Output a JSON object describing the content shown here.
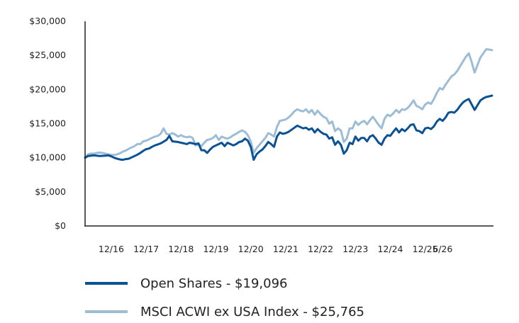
{
  "chart_data": {
    "type": "line",
    "y_ticks": [
      "$0",
      "$5,000",
      "$10,000",
      "$15,000",
      "$20,000",
      "$25,000",
      "$30,000"
    ],
    "x_ticks": [
      {
        "label": "12/16",
        "t": 9
      },
      {
        "label": "12/17",
        "t": 21
      },
      {
        "label": "12/18",
        "t": 33
      },
      {
        "label": "12/19",
        "t": 45
      },
      {
        "label": "12/20",
        "t": 57
      },
      {
        "label": "12/21",
        "t": 69
      },
      {
        "label": "12/22",
        "t": 81
      },
      {
        "label": "12/23",
        "t": 93
      },
      {
        "label": "12/24",
        "t": 105
      },
      {
        "label": "12/25",
        "t": 117
      },
      {
        "label": "6/26",
        "t": 123
      }
    ],
    "ylim": [
      0,
      30000
    ],
    "grid": false,
    "legend_position": "bottom",
    "series": [
      {
        "name": "Open Shares - $19,096",
        "color": "#0a5294",
        "values": [
          10000,
          10250,
          10300,
          10350,
          10300,
          10250,
          10280,
          10300,
          10350,
          10200,
          10000,
          9850,
          9750,
          9700,
          9800,
          9850,
          10050,
          10250,
          10450,
          10700,
          11000,
          11250,
          11350,
          11600,
          11800,
          11950,
          12100,
          12350,
          12600,
          13200,
          12400,
          12350,
          12300,
          12200,
          12100,
          12000,
          12200,
          12100,
          12000,
          12100,
          11100,
          11100,
          10700,
          11200,
          11600,
          11800,
          12000,
          12200,
          11700,
          12200,
          12000,
          11800,
          12000,
          12300,
          12400,
          12800,
          12500,
          11600,
          9700,
          10500,
          10900,
          11200,
          11700,
          12300,
          12000,
          11600,
          13100,
          13700,
          13500,
          13600,
          13800,
          14100,
          14400,
          14700,
          14500,
          14300,
          14400,
          14100,
          14300,
          13700,
          14200,
          13800,
          13500,
          13400,
          12800,
          13000,
          11900,
          12400,
          11900,
          10600,
          11100,
          12200,
          12000,
          13100,
          12500,
          12900,
          12900,
          12400,
          13100,
          13300,
          12800,
          12200,
          11900,
          12800,
          13300,
          13200,
          13800,
          14300,
          13700,
          14200,
          13900,
          14300,
          14800,
          14900,
          14000,
          13900,
          13600,
          14300,
          14400,
          14200,
          14600,
          15300,
          15700,
          15400,
          15900,
          16600,
          16700,
          16600,
          17000,
          17600,
          18100,
          18400,
          18600,
          17800,
          17000,
          17700,
          18400,
          18700,
          18900,
          19000,
          19096
        ]
      },
      {
        "name": "MSCI ACWI ex USA Index - $25,765",
        "color": "#9dbdd7",
        "values": [
          10000,
          10500,
          10600,
          10600,
          10700,
          10750,
          10700,
          10600,
          10500,
          10400,
          10400,
          10500,
          10650,
          10900,
          11050,
          11300,
          11500,
          11700,
          12000,
          12000,
          12400,
          12500,
          12700,
          12900,
          13100,
          13200,
          13500,
          14300,
          13500,
          13400,
          13600,
          13400,
          13100,
          13300,
          13100,
          13000,
          13100,
          12900,
          11800,
          12000,
          11700,
          12200,
          12600,
          12700,
          12900,
          13300,
          12600,
          13100,
          12900,
          12800,
          13000,
          13300,
          13500,
          13800,
          14000,
          13800,
          13300,
          12400,
          10700,
          11400,
          11900,
          12400,
          12900,
          13600,
          13400,
          13100,
          14500,
          15400,
          15500,
          15600,
          15900,
          16300,
          16800,
          17100,
          16900,
          16800,
          17100,
          16600,
          17000,
          16300,
          16900,
          16400,
          16000,
          15800,
          15000,
          15300,
          13900,
          14300,
          14000,
          12300,
          12800,
          14300,
          14300,
          15300,
          14800,
          15200,
          15400,
          14900,
          15500,
          16000,
          15400,
          14800,
          14300,
          15700,
          16300,
          16100,
          16500,
          17000,
          16600,
          17100,
          17000,
          17300,
          17800,
          18400,
          17600,
          17400,
          17100,
          17800,
          18100,
          17900,
          18600,
          19500,
          20200,
          20000,
          20700,
          21300,
          21900,
          22200,
          22700,
          23400,
          24100,
          24800,
          25300,
          24000,
          22500,
          23600,
          24700,
          25300,
          25900,
          25850,
          25765
        ]
      }
    ]
  }
}
